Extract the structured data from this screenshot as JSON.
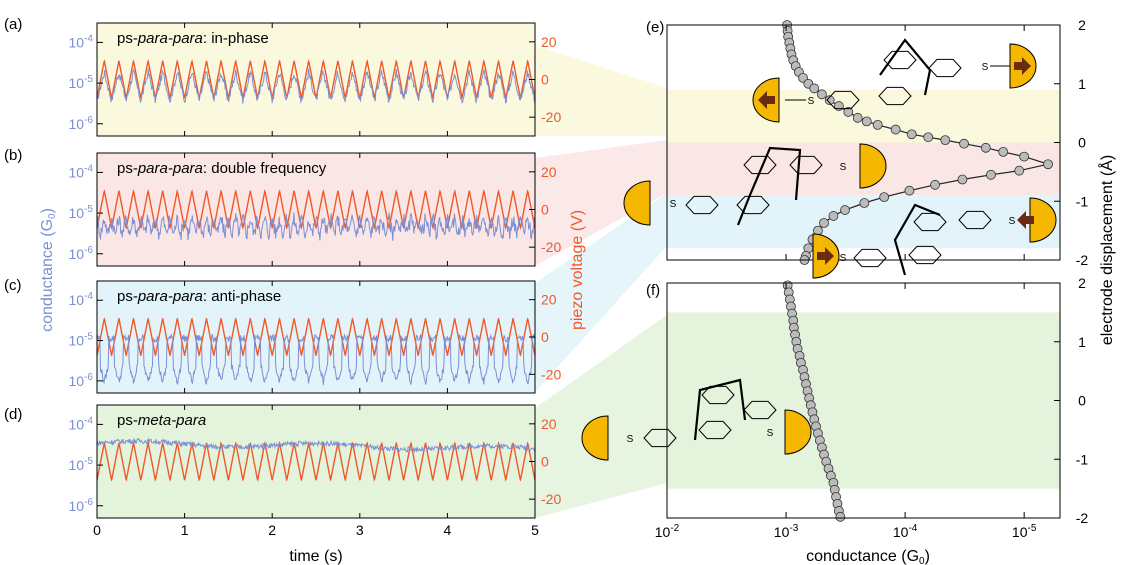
{
  "panel_letters": [
    "(a)",
    "(b)",
    "(c)",
    "(d)",
    "(e)",
    "(f)"
  ],
  "left_axes": {
    "ylabel_left": "conductance (G",
    "ylabel_left_sub": "0",
    "ylabel_left_close": ")",
    "ylabel_right": "piezo voltage (V)",
    "xlabel": "time (s)",
    "x_ticks": [
      "0",
      "1",
      "2",
      "3",
      "4",
      "5"
    ],
    "cond_ticks": [
      {
        "base": "10",
        "exp": "-4"
      },
      {
        "base": "10",
        "exp": "-5"
      },
      {
        "base": "10",
        "exp": "-6"
      }
    ],
    "volt_ticks": [
      "20",
      "0",
      "-20"
    ]
  },
  "right_axes": {
    "xlabel": "conductance (G",
    "xlabel_sub": "0",
    "xlabel_close": ")",
    "ylabel": "electrode displacement (Å)",
    "x_ticks": [
      {
        "base": "10",
        "exp": "-2"
      },
      {
        "base": "10",
        "exp": "-3"
      },
      {
        "base": "10",
        "exp": "-4"
      },
      {
        "base": "10",
        "exp": "-5"
      }
    ],
    "e_y_ticks": [
      "2",
      "1",
      "0",
      "-1",
      "-2"
    ],
    "f_y_ticks": [
      "2",
      "1",
      "0",
      "-1",
      "-2"
    ]
  },
  "colors": {
    "conductance_trace": "#7b8fd4",
    "piezo_trace": "#f0582a",
    "in_phase_bg": "#fbf9dd",
    "double_freq_bg": "#fbe6e6",
    "anti_phase_bg": "#e2f4fa",
    "meta_para_bg": "#e4f3dc",
    "electrode": "#f5b700",
    "arrow": "#6b2a12",
    "marker_fill": "#bbbbbb"
  },
  "chart_data": [
    {
      "type": "line",
      "panel": "(a)",
      "title_prefix": "ps-",
      "title_italic": "para-para",
      "title_suffix": ": in-phase",
      "xlabel": "time (s)",
      "xlim": [
        0,
        5
      ],
      "series": [
        {
          "axis": "left",
          "scale": "log",
          "ylim": [
            5e-07,
            0.0003
          ],
          "pattern": "in-phase",
          "center": 1e-05,
          "amplitude_decades": 0.35
        },
        {
          "axis": "right",
          "scale": "linear",
          "ylim": [
            -30,
            30
          ],
          "waveform": "triangle",
          "frequency_hz": 6,
          "min": -10,
          "max": 10
        }
      ]
    },
    {
      "type": "line",
      "panel": "(b)",
      "title_prefix": "ps-",
      "title_italic": "para-para",
      "title_suffix": ": double frequency",
      "xlabel": "time (s)",
      "xlim": [
        0,
        5
      ],
      "series": [
        {
          "axis": "left",
          "scale": "log",
          "ylim": [
            5e-07,
            0.0003
          ],
          "pattern": "double frequency",
          "center": 3e-06,
          "amplitude_decades": 0.4
        },
        {
          "axis": "right",
          "scale": "linear",
          "ylim": [
            -30,
            30
          ],
          "waveform": "triangle",
          "frequency_hz": 6,
          "min": -10,
          "max": 10
        }
      ]
    },
    {
      "type": "line",
      "panel": "(c)",
      "title_prefix": "ps-",
      "title_italic": "para-para",
      "title_suffix": ": anti-phase",
      "xlabel": "time (s)",
      "xlim": [
        0,
        5
      ],
      "series": [
        {
          "axis": "left",
          "scale": "log",
          "ylim": [
            5e-07,
            0.0003
          ],
          "pattern": "anti-phase",
          "center": 2.5e-06,
          "amplitude_decades": 0.6
        },
        {
          "axis": "right",
          "scale": "linear",
          "ylim": [
            -30,
            30
          ],
          "waveform": "triangle",
          "frequency_hz": 6,
          "min": -10,
          "max": 10
        }
      ]
    },
    {
      "type": "line",
      "panel": "(d)",
      "title_prefix": "ps-",
      "title_italic": "meta-para",
      "title_suffix": "",
      "xlabel": "time (s)",
      "xlim": [
        0,
        5
      ],
      "series": [
        {
          "axis": "left",
          "scale": "log",
          "ylim": [
            5e-07,
            0.0003
          ],
          "pattern": "slow drift",
          "start": 3.5e-05,
          "end": 2.5e-05
        },
        {
          "axis": "right",
          "scale": "linear",
          "ylim": [
            -30,
            30
          ],
          "waveform": "triangle",
          "frequency_hz": 6,
          "min": -10,
          "max": 10
        }
      ]
    },
    {
      "type": "scatter",
      "panel": "(e)",
      "xlabel": "",
      "ylabel": "electrode displacement (Å)",
      "x_scale": "log-reversed",
      "xlim": [
        0.01,
        5e-06
      ],
      "ylim": [
        -2,
        2
      ],
      "bands": [
        {
          "range": [
            0,
            0.9
          ],
          "color": "in_phase_bg"
        },
        {
          "range": [
            -0.9,
            0
          ],
          "color": "double_freq_bg"
        },
        {
          "range": [
            -1.8,
            -0.9
          ],
          "color": "anti_phase_bg"
        }
      ],
      "points": [
        [
          0.00098,
          2.0
        ],
        [
          0.00097,
          1.9
        ],
        [
          0.00096,
          1.8
        ],
        [
          0.00094,
          1.7
        ],
        [
          0.00092,
          1.6
        ],
        [
          0.0009,
          1.5
        ],
        [
          0.00087,
          1.4
        ],
        [
          0.00083,
          1.3
        ],
        [
          0.00078,
          1.2
        ],
        [
          0.00072,
          1.1
        ],
        [
          0.00065,
          1.0
        ],
        [
          0.00058,
          0.92
        ],
        [
          0.0005,
          0.82
        ],
        [
          0.00043,
          0.72
        ],
        [
          0.00036,
          0.62
        ],
        [
          0.0003,
          0.52
        ],
        [
          0.00025,
          0.42
        ],
        [
          0.00021,
          0.36
        ],
        [
          0.00017,
          0.3
        ],
        [
          0.00012,
          0.22
        ],
        [
          8.8e-05,
          0.14
        ],
        [
          6.4e-05,
          0.09
        ],
        [
          4.6e-05,
          0.04
        ],
        [
          3.2e-05,
          -0.02
        ],
        [
          2.1e-05,
          -0.09
        ],
        [
          1.5e-05,
          -0.16
        ],
        [
          1e-05,
          -0.24
        ],
        [
          6.3e-06,
          -0.37
        ],
        [
          1.1e-05,
          -0.48
        ],
        [
          1.9e-05,
          -0.55
        ],
        [
          3.3e-05,
          -0.63
        ],
        [
          5.6e-05,
          -0.72
        ],
        [
          9.2e-05,
          -0.82
        ],
        [
          0.00015,
          -0.93
        ],
        [
          0.00022,
          -1.03
        ],
        [
          0.00032,
          -1.15
        ],
        [
          0.0004,
          -1.25
        ],
        [
          0.00048,
          -1.37
        ],
        [
          0.00054,
          -1.5
        ],
        [
          0.0006,
          -1.65
        ],
        [
          0.00065,
          -1.8
        ],
        [
          0.00068,
          -1.93
        ],
        [
          0.0007,
          -2.0
        ]
      ]
    },
    {
      "type": "scatter",
      "panel": "(f)",
      "xlabel": "conductance (G0)",
      "ylabel": "electrode displacement (Å)",
      "x_scale": "log-reversed",
      "xlim": [
        0.01,
        5e-06
      ],
      "ylim": [
        -2,
        2
      ],
      "bands": [
        {
          "range": [
            -1.5,
            1.5
          ],
          "color": "meta_para_bg"
        }
      ],
      "points": [
        [
          0.00097,
          1.96
        ],
        [
          0.00095,
          1.84
        ],
        [
          0.00093,
          1.72
        ],
        [
          0.00091,
          1.6
        ],
        [
          0.00089,
          1.48
        ],
        [
          0.00087,
          1.36
        ],
        [
          0.00086,
          1.24
        ],
        [
          0.00084,
          1.12
        ],
        [
          0.00082,
          1.0
        ],
        [
          0.0008,
          0.88
        ],
        [
          0.00077,
          0.76
        ],
        [
          0.00075,
          0.64
        ],
        [
          0.00072,
          0.52
        ],
        [
          0.0007,
          0.4
        ],
        [
          0.00068,
          0.28
        ],
        [
          0.00066,
          0.16
        ],
        [
          0.00064,
          0.04
        ],
        [
          0.00062,
          -0.08
        ],
        [
          0.0006,
          -0.2
        ],
        [
          0.00058,
          -0.32
        ],
        [
          0.00056,
          -0.44
        ],
        [
          0.00054,
          -0.56
        ],
        [
          0.00052,
          -0.68
        ],
        [
          0.0005,
          -0.8
        ],
        [
          0.00048,
          -0.92
        ],
        [
          0.00046,
          -1.04
        ],
        [
          0.00044,
          -1.16
        ],
        [
          0.00042,
          -1.28
        ],
        [
          0.0004,
          -1.4
        ],
        [
          0.00039,
          -1.52
        ],
        [
          0.00038,
          -1.64
        ],
        [
          0.00037,
          -1.76
        ],
        [
          0.00036,
          -1.88
        ],
        [
          0.00035,
          -1.98
        ]
      ]
    }
  ]
}
